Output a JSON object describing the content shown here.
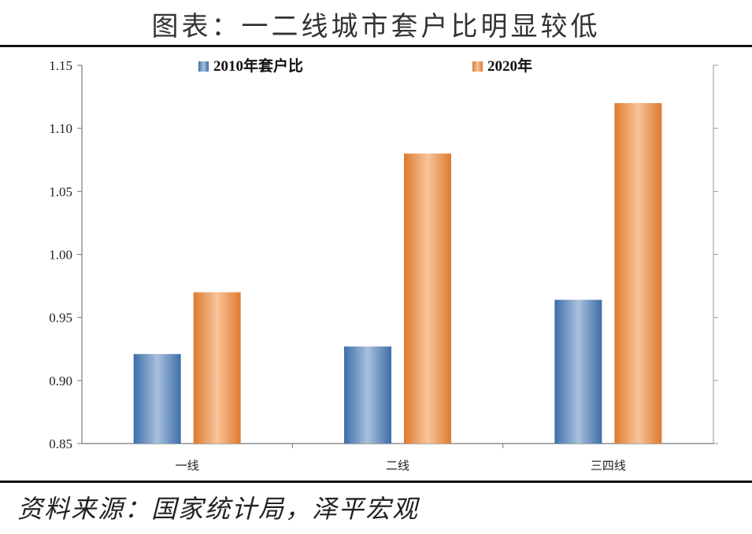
{
  "chart_data": {
    "type": "bar",
    "title": "图表：一二线城市套户比明显较低",
    "categories": [
      "一线",
      "二线",
      "三四线"
    ],
    "series": [
      {
        "name": "2010年套户比",
        "values": [
          0.921,
          0.927,
          0.964
        ],
        "color": "#4f81bd"
      },
      {
        "name": "2020年",
        "values": [
          0.97,
          1.08,
          1.12
        ],
        "color": "#f79646"
      }
    ],
    "ylim": [
      0.85,
      1.15
    ],
    "yticks": [
      "0.85",
      "0.90",
      "0.95",
      "1.00",
      "1.05",
      "1.10",
      "1.15"
    ],
    "xlabel": "",
    "ylabel": "",
    "legend_position": "top",
    "grid": false
  },
  "source": "资料来源：国家统计局，泽平宏观"
}
